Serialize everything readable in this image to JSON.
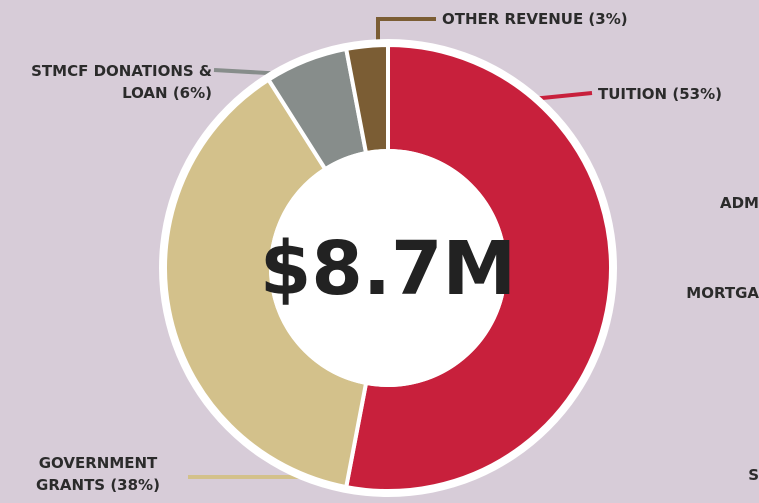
{
  "chart_data": {
    "type": "pie",
    "donut": true,
    "categories": [
      "TUITION (53%)",
      "GOVERNMENT GRANTS (38%)",
      "STMCF DONATIONS & LOAN (6%)",
      "OTHER REVENUE (3%)"
    ],
    "values": [
      53,
      38,
      6,
      3
    ],
    "colors": [
      "#c8203c",
      "#d3c18b",
      "#878d8b",
      "#7b5d34"
    ],
    "center_label": "$8.7M",
    "clipped_labels": [
      "ADM",
      "MORTGA",
      "S"
    ]
  }
}
